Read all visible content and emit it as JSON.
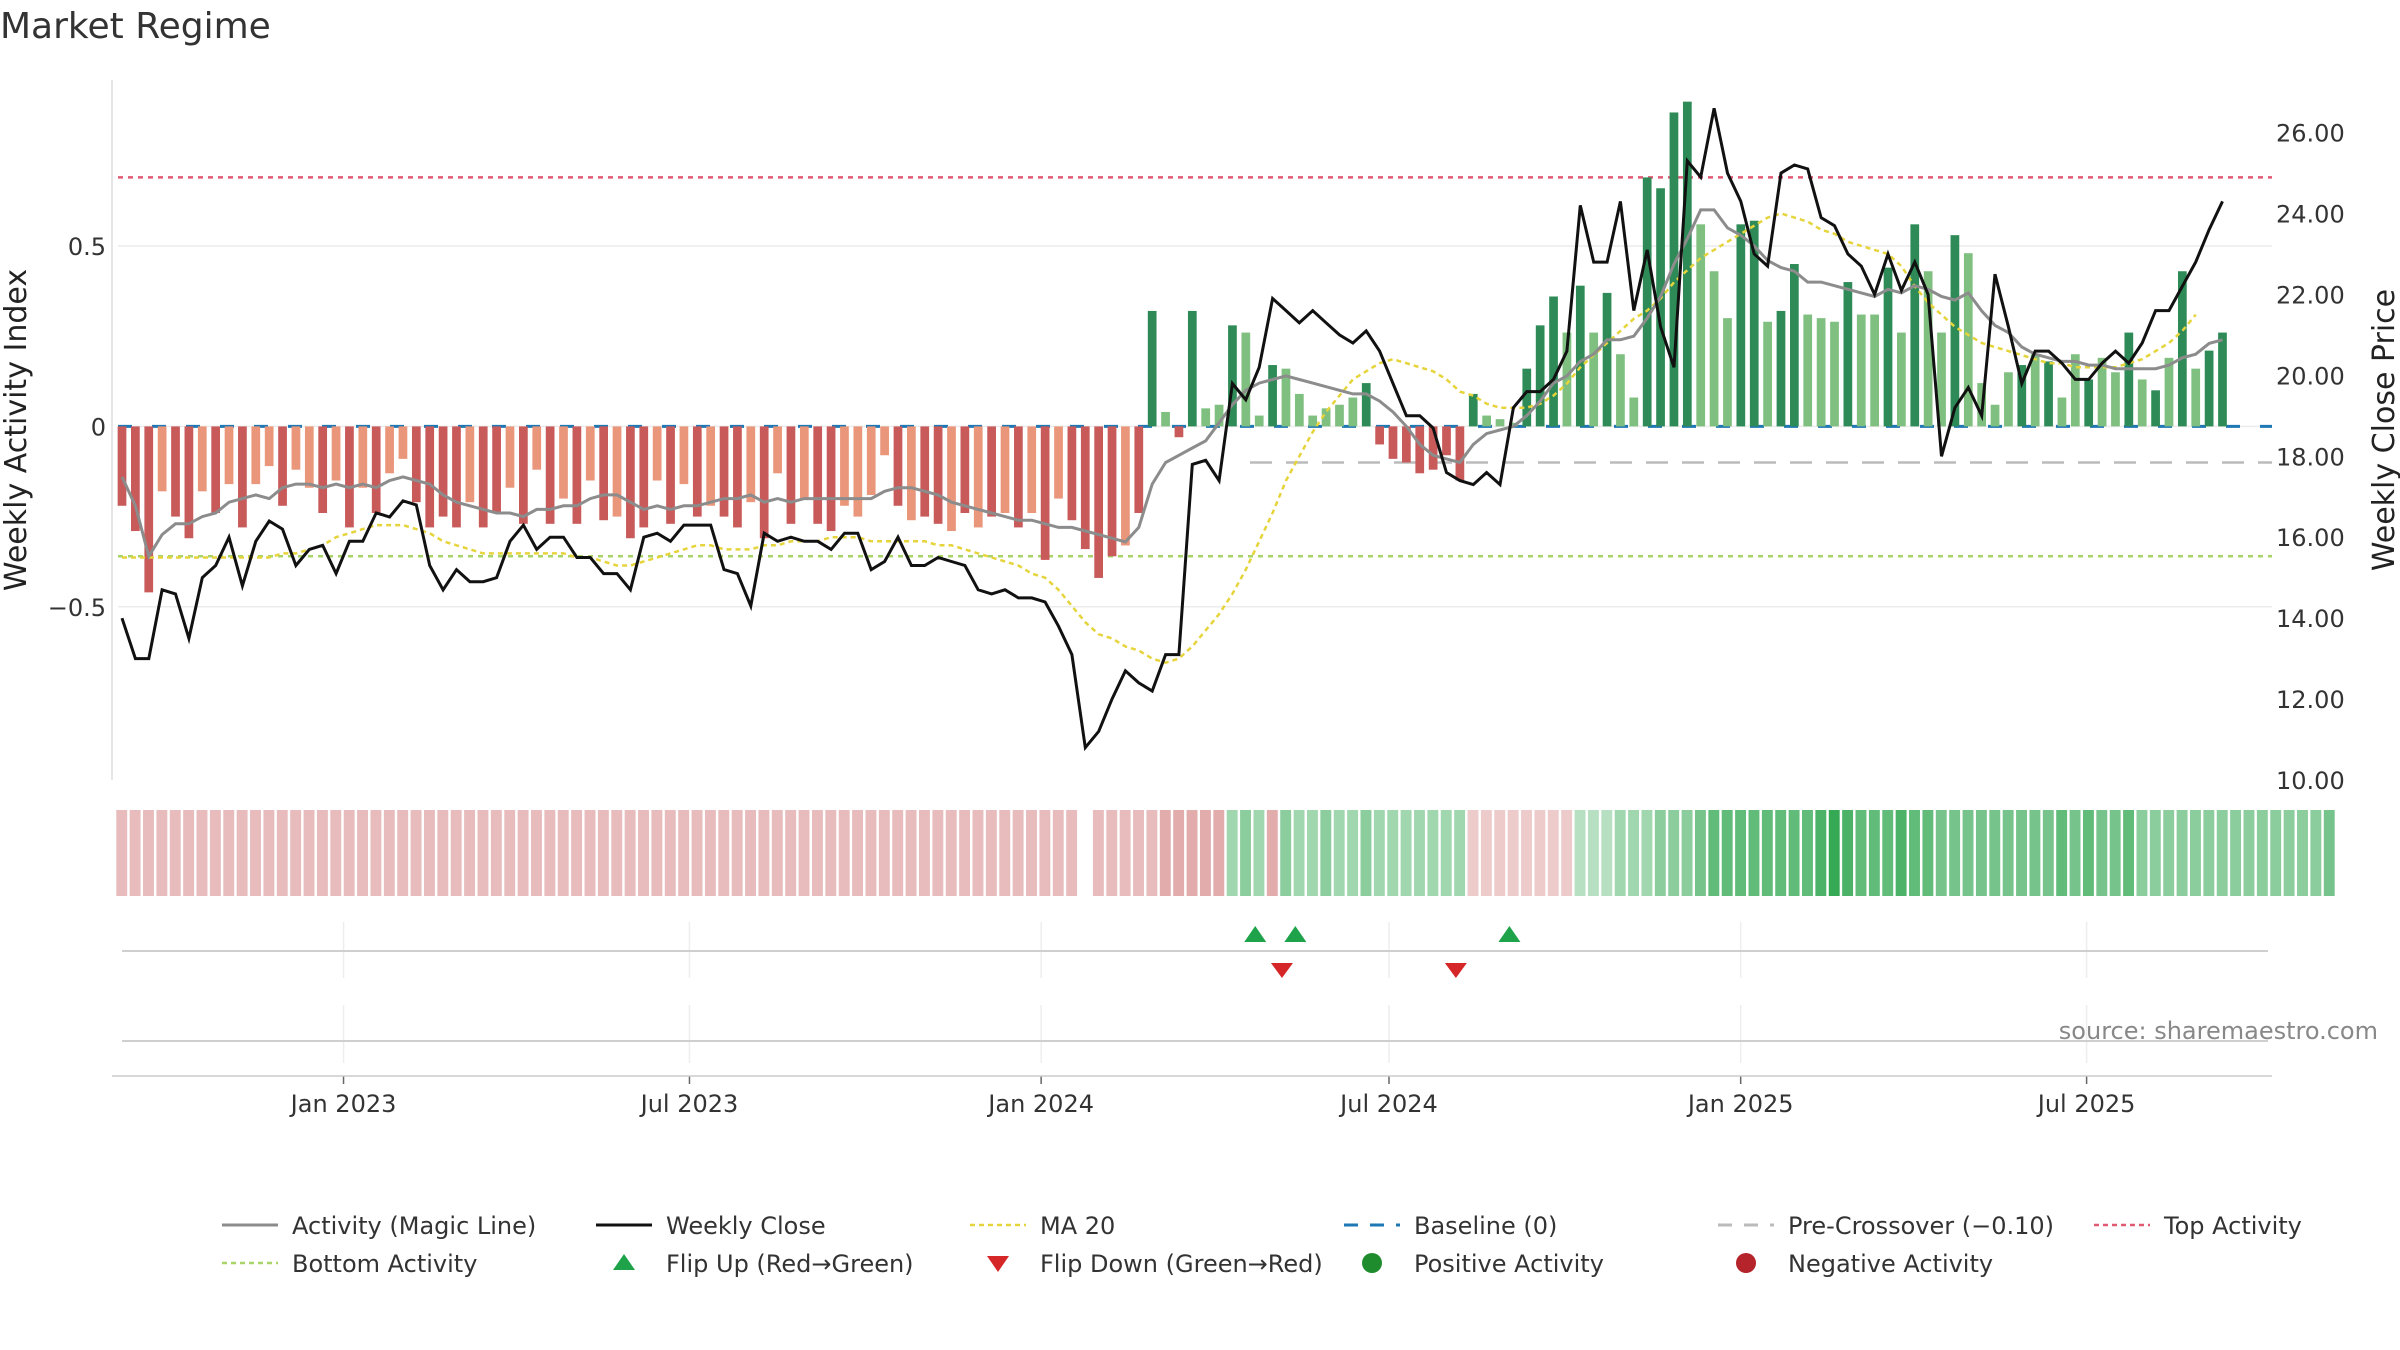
{
  "title": "Market Regime",
  "source": "source: sharemaestro.com",
  "colors": {
    "pos_dark": "#2e8b57",
    "pos_light": "#7fbf7f",
    "neg_dark": "#c85a5a",
    "neg_light": "#e9967a",
    "magic": "#8c8c8c",
    "close": "#111111",
    "ma": "#e6d43c",
    "baseline": "#1f77b4",
    "precross": "#bbbbbb",
    "top": "#e05a74",
    "bottom": "#a9d468",
    "flip_up": "#1fa34a",
    "flip_down": "#d62728",
    "pos_dot": "#1e8c2d",
    "neg_dot": "#b5242a"
  },
  "chart_data": {
    "type": "bar",
    "title": "Market Regime",
    "ylabel": "Weekly Activity Index",
    "y2label": "Weekly Close Price",
    "ylim": [
      -0.98,
      0.96
    ],
    "y2lim": [
      10.0,
      27.3
    ],
    "yticks": [
      "0.5",
      "0",
      "−0.5"
    ],
    "y2ticks": [
      "10.00",
      "12.00",
      "14.00",
      "16.00",
      "18.00",
      "20.00",
      "22.00",
      "24.00",
      "26.00"
    ],
    "xticks": [
      "Jan 2023",
      "Jul 2023",
      "Jan 2024",
      "Jul 2024",
      "Jan 2025",
      "Jul 2025"
    ],
    "x_start": "2022-09-05",
    "x_end": "2025-10-06",
    "xtick_dates": [
      "2023-01-01",
      "2023-07-01",
      "2024-01-01",
      "2024-07-01",
      "2025-01-01",
      "2025-07-01"
    ],
    "reference_lines": {
      "top_activity": 0.69,
      "bottom_activity": -0.36,
      "baseline": 0.0,
      "pre_crossover": -0.1
    },
    "activity": [
      -0.22,
      -0.29,
      -0.46,
      -0.18,
      -0.25,
      -0.31,
      -0.18,
      -0.24,
      -0.16,
      -0.28,
      -0.16,
      -0.11,
      -0.22,
      -0.12,
      -0.17,
      -0.24,
      -0.15,
      -0.28,
      -0.17,
      -0.24,
      -0.13,
      -0.09,
      -0.21,
      -0.28,
      -0.25,
      -0.28,
      -0.21,
      -0.28,
      -0.24,
      -0.17,
      -0.27,
      -0.12,
      -0.27,
      -0.2,
      -0.27,
      -0.15,
      -0.26,
      -0.25,
      -0.31,
      -0.28,
      -0.15,
      -0.27,
      -0.16,
      -0.25,
      -0.22,
      -0.25,
      -0.28,
      -0.21,
      -0.31,
      -0.13,
      -0.27,
      -0.2,
      -0.27,
      -0.29,
      -0.22,
      -0.25,
      -0.19,
      -0.08,
      -0.22,
      -0.26,
      -0.25,
      -0.27,
      -0.29,
      -0.24,
      -0.28,
      -0.25,
      -0.24,
      -0.28,
      -0.24,
      -0.37,
      -0.2,
      -0.26,
      -0.34,
      -0.42,
      -0.36,
      -0.33,
      -0.24,
      0.32,
      0.04,
      -0.03,
      0.32,
      0.05,
      0.06,
      0.28,
      0.26,
      0.03,
      0.17,
      0.16,
      0.09,
      0.03,
      0.05,
      0.06,
      0.08,
      0.12,
      -0.05,
      -0.09,
      -0.1,
      -0.13,
      -0.12,
      -0.08,
      -0.15,
      0.09,
      0.03,
      0.02,
      0.01,
      0.16,
      0.28,
      0.36,
      0.26,
      0.39,
      0.26,
      0.37,
      0.2,
      0.08,
      0.69,
      0.66,
      0.87,
      0.9,
      0.56,
      0.43,
      0.3,
      0.56,
      0.57,
      0.29,
      0.32,
      0.45,
      0.31,
      0.3,
      0.29,
      0.4,
      0.31,
      0.31,
      0.44,
      0.26,
      0.56,
      0.43,
      0.26,
      0.53,
      0.48,
      0.12,
      0.06,
      0.15,
      0.17,
      0.2,
      0.18,
      0.08,
      0.2,
      0.13,
      0.19,
      0.15,
      0.26,
      0.13,
      0.1,
      0.19,
      0.43,
      0.16,
      0.21,
      0.26
    ],
    "activity_colors": [
      "n",
      "n",
      "n",
      "l",
      "n",
      "n",
      "l",
      "n",
      "l",
      "n",
      "l",
      "l",
      "n",
      "l",
      "l",
      "n",
      "l",
      "n",
      "l",
      "n",
      "l",
      "l",
      "n",
      "n",
      "n",
      "n",
      "l",
      "n",
      "n",
      "l",
      "n",
      "l",
      "n",
      "l",
      "n",
      "l",
      "n",
      "l",
      "n",
      "n",
      "l",
      "n",
      "l",
      "n",
      "l",
      "n",
      "n",
      "l",
      "n",
      "l",
      "n",
      "l",
      "n",
      "n",
      "l",
      "l",
      "l",
      "l",
      "n",
      "l",
      "n",
      "n",
      "l",
      "n",
      "l",
      "n",
      "l",
      "n",
      "l",
      "n",
      "l",
      "n",
      "n",
      "n",
      "n",
      "l",
      "n",
      "p",
      "pl",
      "n",
      "p",
      "pl",
      "pl",
      "p",
      "pl",
      "pl",
      "p",
      "pl",
      "pl",
      "pl",
      "pl",
      "pl",
      "pl",
      "p",
      "n",
      "n",
      "n",
      "n",
      "n",
      "n",
      "n",
      "p",
      "pl",
      "pl",
      "pl",
      "p",
      "p",
      "p",
      "pl",
      "p",
      "pl",
      "p",
      "pl",
      "pl",
      "p",
      "p",
      "p",
      "p",
      "pl",
      "pl",
      "pl",
      "p",
      "p",
      "pl",
      "p",
      "p",
      "pl",
      "pl",
      "pl",
      "p",
      "pl",
      "pl",
      "p",
      "pl",
      "p",
      "pl",
      "pl",
      "p",
      "pl",
      "pl",
      "pl",
      "pl",
      "p",
      "pl",
      "p",
      "pl",
      "pl",
      "p",
      "pl",
      "pl",
      "p",
      "pl",
      "p",
      "pl",
      "p",
      "pl",
      "p",
      "p"
    ],
    "magic_line": [
      -0.14,
      -0.22,
      -0.36,
      -0.3,
      -0.27,
      -0.27,
      -0.25,
      -0.24,
      -0.21,
      -0.2,
      -0.19,
      -0.2,
      -0.17,
      -0.16,
      -0.16,
      -0.17,
      -0.16,
      -0.17,
      -0.16,
      -0.17,
      -0.15,
      -0.14,
      -0.15,
      -0.16,
      -0.19,
      -0.21,
      -0.22,
      -0.23,
      -0.24,
      -0.24,
      -0.25,
      -0.23,
      -0.23,
      -0.22,
      -0.22,
      -0.2,
      -0.19,
      -0.19,
      -0.21,
      -0.23,
      -0.22,
      -0.23,
      -0.22,
      -0.22,
      -0.21,
      -0.2,
      -0.2,
      -0.19,
      -0.21,
      -0.2,
      -0.21,
      -0.2,
      -0.2,
      -0.2,
      -0.2,
      -0.2,
      -0.2,
      -0.18,
      -0.17,
      -0.17,
      -0.18,
      -0.19,
      -0.21,
      -0.22,
      -0.23,
      -0.24,
      -0.25,
      -0.26,
      -0.26,
      -0.27,
      -0.28,
      -0.28,
      -0.29,
      -0.3,
      -0.31,
      -0.32,
      -0.28,
      -0.16,
      -0.1,
      -0.08,
      -0.06,
      -0.04,
      0.01,
      0.06,
      0.1,
      0.12,
      0.13,
      0.14,
      0.13,
      0.12,
      0.11,
      0.1,
      0.09,
      0.09,
      0.07,
      0.04,
      0.0,
      -0.05,
      -0.08,
      -0.09,
      -0.1,
      -0.05,
      -0.02,
      -0.01,
      0.0,
      0.03,
      0.07,
      0.12,
      0.14,
      0.18,
      0.2,
      0.24,
      0.24,
      0.25,
      0.3,
      0.36,
      0.45,
      0.52,
      0.6,
      0.6,
      0.55,
      0.53,
      0.5,
      0.46,
      0.44,
      0.43,
      0.4,
      0.4,
      0.39,
      0.38,
      0.37,
      0.36,
      0.38,
      0.37,
      0.39,
      0.38,
      0.36,
      0.35,
      0.37,
      0.32,
      0.28,
      0.26,
      0.22,
      0.2,
      0.19,
      0.18,
      0.18,
      0.17,
      0.17,
      0.16,
      0.16,
      0.16,
      0.16,
      0.17,
      0.19,
      0.2,
      0.23,
      0.24
    ],
    "weekly_close": [
      14.0,
      13.0,
      13.0,
      14.7,
      14.6,
      13.5,
      15.0,
      15.3,
      16.0,
      14.8,
      15.9,
      16.4,
      16.2,
      15.3,
      15.7,
      15.8,
      15.1,
      15.9,
      15.9,
      16.6,
      16.5,
      16.9,
      16.8,
      15.3,
      14.7,
      15.2,
      14.9,
      14.9,
      15.0,
      15.9,
      16.3,
      15.7,
      16.0,
      16.0,
      15.5,
      15.5,
      15.1,
      15.1,
      14.7,
      16.0,
      16.1,
      15.9,
      16.3,
      16.3,
      16.3,
      15.2,
      15.1,
      14.3,
      16.1,
      15.9,
      16.0,
      15.9,
      15.9,
      15.7,
      16.1,
      16.1,
      15.2,
      15.4,
      16.0,
      15.3,
      15.3,
      15.5,
      15.4,
      15.3,
      14.7,
      14.6,
      14.7,
      14.5,
      14.5,
      14.4,
      13.8,
      13.1,
      10.8,
      11.2,
      12.0,
      12.7,
      12.4,
      12.2,
      13.1,
      13.1,
      17.8,
      17.9,
      17.4,
      19.8,
      19.4,
      20.2,
      21.9,
      21.6,
      21.3,
      21.6,
      21.3,
      21.0,
      20.8,
      21.1,
      20.6,
      19.8,
      19.0,
      19.0,
      18.7,
      17.6,
      17.4,
      17.3,
      17.6,
      17.3,
      19.2,
      19.6,
      19.6,
      19.9,
      20.6,
      24.2,
      22.8,
      22.8,
      24.3,
      21.6,
      23.1,
      21.2,
      20.2,
      25.3,
      24.9,
      26.6,
      25.0,
      24.3,
      23.0,
      22.7,
      25.0,
      25.2,
      25.1,
      23.9,
      23.7,
      23.0,
      22.7,
      22.0,
      23.0,
      22.1,
      22.8,
      22.0,
      18.0,
      19.2,
      19.7,
      19.0,
      22.5,
      21.2,
      19.8,
      20.6,
      20.6,
      20.3,
      19.9,
      19.9,
      20.3,
      20.6,
      20.3,
      20.8,
      21.6,
      21.6,
      22.2,
      22.8,
      23.6,
      24.3
    ],
    "ma20": [
      15.5,
      15.5,
      15.5,
      15.5,
      15.5,
      15.5,
      15.5,
      15.5,
      15.5,
      15.5,
      15.5,
      15.5,
      15.6,
      15.6,
      15.7,
      15.8,
      16.0,
      16.1,
      16.2,
      16.3,
      16.3,
      16.3,
      16.2,
      16.1,
      15.9,
      15.8,
      15.7,
      15.6,
      15.6,
      15.6,
      15.6,
      15.6,
      15.6,
      15.6,
      15.5,
      15.5,
      15.4,
      15.3,
      15.3,
      15.4,
      15.5,
      15.6,
      15.7,
      15.8,
      15.8,
      15.7,
      15.7,
      15.7,
      15.8,
      15.8,
      15.9,
      15.9,
      15.9,
      16.0,
      16.0,
      16.0,
      15.9,
      15.9,
      15.9,
      15.9,
      15.9,
      15.8,
      15.8,
      15.7,
      15.6,
      15.5,
      15.4,
      15.3,
      15.1,
      15.0,
      14.7,
      14.3,
      13.9,
      13.6,
      13.5,
      13.3,
      13.2,
      13.0,
      12.9,
      13.0,
      13.3,
      13.7,
      14.1,
      14.6,
      15.2,
      15.9,
      16.6,
      17.4,
      18.0,
      18.6,
      19.1,
      19.5,
      19.9,
      20.1,
      20.3,
      20.4,
      20.3,
      20.2,
      20.1,
      19.9,
      19.6,
      19.5,
      19.3,
      19.2,
      19.2,
      19.2,
      19.3,
      19.5,
      19.8,
      20.2,
      20.5,
      20.8,
      21.1,
      21.4,
      21.6,
      21.9,
      22.3,
      22.6,
      22.9,
      23.1,
      23.3,
      23.5,
      23.7,
      23.9,
      24.0,
      23.9,
      23.8,
      23.6,
      23.5,
      23.3,
      23.2,
      23.1,
      23.0,
      22.7,
      22.2,
      21.8,
      21.5,
      21.2,
      21.0,
      20.8,
      20.7,
      20.6,
      20.5,
      20.4,
      20.3,
      20.3,
      20.2,
      20.2,
      20.2,
      20.2,
      20.3,
      20.4,
      20.6,
      20.8,
      21.1,
      21.5
    ],
    "regime_shades": [
      -0.3,
      -0.3,
      -0.3,
      -0.3,
      -0.3,
      -0.3,
      -0.3,
      -0.3,
      -0.3,
      -0.3,
      -0.3,
      -0.3,
      -0.3,
      -0.3,
      -0.3,
      -0.3,
      -0.3,
      -0.3,
      -0.3,
      -0.3,
      -0.3,
      -0.3,
      -0.3,
      -0.3,
      -0.3,
      -0.3,
      -0.3,
      -0.3,
      -0.3,
      -0.3,
      -0.3,
      -0.3,
      -0.3,
      -0.3,
      -0.3,
      -0.3,
      -0.3,
      -0.3,
      -0.3,
      -0.3,
      -0.3,
      -0.3,
      -0.3,
      -0.3,
      -0.3,
      -0.3,
      -0.3,
      -0.3,
      -0.3,
      -0.3,
      -0.3,
      -0.3,
      -0.3,
      -0.3,
      -0.3,
      -0.3,
      -0.3,
      -0.3,
      -0.3,
      -0.3,
      -0.3,
      -0.3,
      -0.3,
      -0.3,
      -0.3,
      -0.3,
      -0.3,
      -0.3,
      -0.3,
      -0.3,
      -0.3,
      -0.3,
      null,
      -0.3,
      -0.3,
      -0.3,
      -0.3,
      -0.3,
      -0.4,
      -0.4,
      -0.4,
      -0.4,
      -0.4,
      0.3,
      0.4,
      0.3,
      -0.4,
      0.4,
      0.3,
      0.3,
      0.4,
      0.3,
      0.3,
      0.4,
      0.3,
      0.3,
      0.3,
      0.3,
      0.3,
      0.3,
      0.3,
      -0.2,
      -0.2,
      -0.2,
      -0.2,
      -0.2,
      -0.2,
      -0.2,
      -0.2,
      0.2,
      0.2,
      0.2,
      0.3,
      0.3,
      0.3,
      0.4,
      0.4,
      0.4,
      0.5,
      0.6,
      0.6,
      0.6,
      0.6,
      0.6,
      0.6,
      0.6,
      0.6,
      0.7,
      0.8,
      0.7,
      0.6,
      0.6,
      0.6,
      0.7,
      0.6,
      0.6,
      0.5,
      0.5,
      0.5,
      0.5,
      0.5,
      0.5,
      0.5,
      0.5,
      0.5,
      0.6,
      0.5,
      0.6,
      0.5,
      0.5,
      0.6,
      0.4,
      0.4,
      0.4,
      0.4,
      0.4,
      0.4,
      0.4,
      0.4,
      0.4,
      0.4,
      0.4,
      0.4,
      0.4,
      0.4,
      0.5
    ],
    "flip_up": [
      "2024-04-22",
      "2024-05-13",
      "2024-09-02"
    ],
    "flip_down": [
      "2024-05-06",
      "2024-08-05"
    ]
  },
  "legend": [
    {
      "label": "Activity (Magic Line)",
      "kind": "line",
      "color": "#8c8c8c"
    },
    {
      "label": "Weekly Close",
      "kind": "line",
      "color": "#111111"
    },
    {
      "label": "MA 20",
      "kind": "dotted",
      "color": "#e6d43c"
    },
    {
      "label": "Baseline (0)",
      "kind": "dashed",
      "color": "#1f77b4"
    },
    {
      "label": "Pre-Crossover (−0.10)",
      "kind": "dashed",
      "color": "#bbbbbb"
    },
    {
      "label": "Top Activity",
      "kind": "dotted",
      "color": "#e05a74"
    },
    {
      "label": "Bottom Activity",
      "kind": "dotted",
      "color": "#a9d468"
    },
    {
      "label": "Flip Up (Red→Green)",
      "kind": "tri-up",
      "color": "#1fa34a"
    },
    {
      "label": "Flip Down (Green→Red)",
      "kind": "tri-down",
      "color": "#d62728"
    },
    {
      "label": "Positive Activity",
      "kind": "dot",
      "color": "#1e8c2d"
    },
    {
      "label": "Negative Activity",
      "kind": "dot",
      "color": "#b5242a"
    }
  ]
}
